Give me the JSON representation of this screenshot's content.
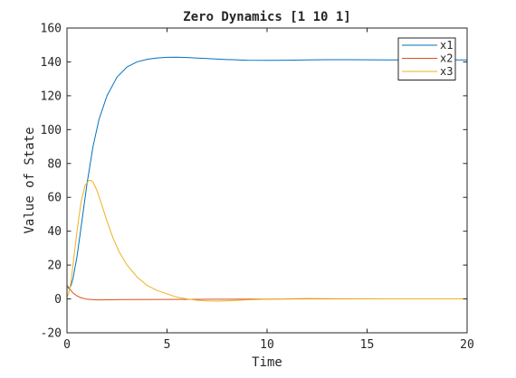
{
  "chart_data": {
    "type": "line",
    "title": "Zero Dynamics [1 10 1]",
    "xlabel": "Time",
    "ylabel": "Value of State",
    "xlim": [
      0,
      20
    ],
    "ylim": [
      -20,
      160
    ],
    "xticks": [
      0,
      5,
      10,
      15,
      20
    ],
    "yticks": [
      -20,
      0,
      20,
      40,
      60,
      80,
      100,
      120,
      140,
      160
    ],
    "xtick_labels": [
      "0",
      "5",
      "10",
      "15",
      "20"
    ],
    "ytick_labels": [
      "-20",
      "0",
      "20",
      "40",
      "60",
      "80",
      "100",
      "120",
      "140",
      "160"
    ],
    "grid": false,
    "legend_position": "top-right",
    "series": [
      {
        "name": "x1",
        "color": "#0072BD",
        "x": [
          0,
          0.1,
          0.2,
          0.3,
          0.5,
          0.7,
          1.0,
          1.3,
          1.6,
          2.0,
          2.5,
          3.0,
          3.5,
          4.0,
          4.5,
          5.0,
          5.5,
          6.0,
          7.0,
          8.0,
          9.0,
          10.0,
          11.0,
          12.0,
          13.0,
          14.0,
          16.0,
          18.0,
          20.0
        ],
        "y": [
          8,
          6,
          8,
          12,
          25,
          42,
          68,
          90,
          106,
          120,
          131,
          137,
          140,
          141.5,
          142.3,
          142.7,
          142.8,
          142.6,
          142.0,
          141.4,
          141.0,
          140.9,
          141.0,
          141.2,
          141.3,
          141.3,
          141.2,
          141.2,
          141.2
        ]
      },
      {
        "name": "x2",
        "color": "#D95319",
        "x": [
          0,
          0.1,
          0.2,
          0.3,
          0.5,
          0.7,
          1.0,
          1.5,
          2.0,
          3.0,
          5.0,
          8.0,
          10.0,
          12.0,
          15.0,
          20.0
        ],
        "y": [
          8,
          6.5,
          5,
          3.5,
          1.8,
          0.7,
          -0.2,
          -0.6,
          -0.5,
          -0.4,
          -0.3,
          -0.2,
          -0.1,
          0,
          0,
          0
        ]
      },
      {
        "name": "x3",
        "color": "#EDB120",
        "x": [
          0,
          0.1,
          0.2,
          0.3,
          0.5,
          0.7,
          0.9,
          1.1,
          1.2,
          1.3,
          1.5,
          1.7,
          2.0,
          2.3,
          2.6,
          3.0,
          3.5,
          4.0,
          4.5,
          5.0,
          5.5,
          6.0,
          6.5,
          7.0,
          7.5,
          8.0,
          9.0,
          10.0,
          11.0,
          12.0,
          14.0,
          16.0,
          20.0
        ],
        "y": [
          1,
          4,
          10,
          20,
          40,
          57,
          67,
          70,
          70,
          69,
          64,
          57,
          46,
          36,
          28,
          20,
          13,
          8,
          5,
          3,
          1,
          0,
          -0.8,
          -1.2,
          -1.3,
          -1.1,
          -0.6,
          -0.2,
          0.1,
          0.2,
          0.1,
          0,
          0
        ]
      }
    ]
  }
}
